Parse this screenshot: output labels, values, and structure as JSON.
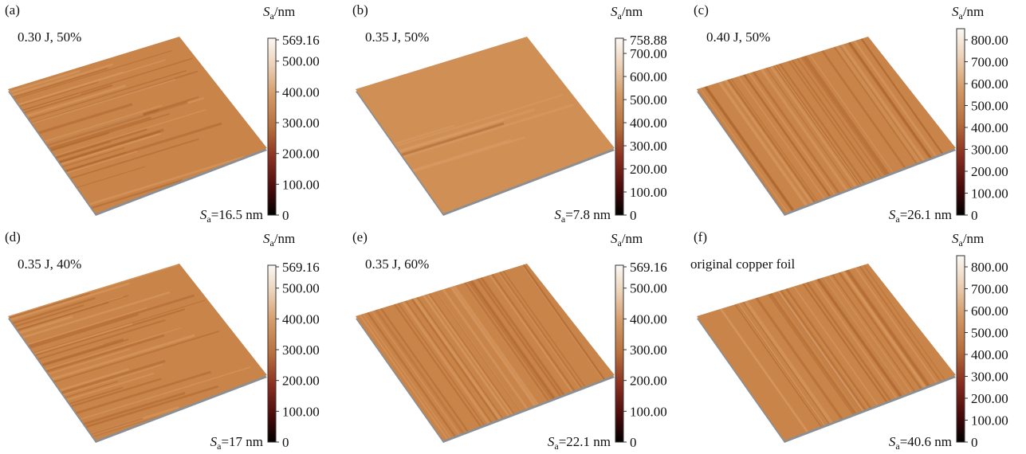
{
  "symbol": "S",
  "subscript": "a",
  "unit": "/nm",
  "panels": [
    {
      "label": "(a)",
      "condition": "0.30 J,   50%",
      "roughness": "=16.5 nm",
      "colorbar_ticks": [
        "569.16",
        "500.00",
        "400.00",
        "300.00",
        "200.00",
        "100.00",
        "0"
      ]
    },
    {
      "label": "(b)",
      "condition": "0.35 J,   50%",
      "roughness": "=7.8 nm",
      "colorbar_ticks": [
        "758.88",
        "700.00",
        "600.00",
        "500.00",
        "400.00",
        "300.00",
        "200.00",
        "100.00",
        "0"
      ]
    },
    {
      "label": "(c)",
      "condition": "0.40 J,   50%",
      "roughness": "=26.1 nm",
      "colorbar_ticks": [
        "800.00",
        "700.00",
        "600.00",
        "500.00",
        "400.00",
        "300.00",
        "200.00",
        "100.00",
        "0"
      ]
    },
    {
      "label": "(d)",
      "condition": "0.35 J,   40%",
      "roughness": "=17 nm",
      "colorbar_ticks": [
        "569.16",
        "500.00",
        "400.00",
        "300.00",
        "200.00",
        "100.00",
        "0"
      ]
    },
    {
      "label": "(e)",
      "condition": "0.35 J,   60%",
      "roughness": "=22.1 nm",
      "colorbar_ticks": [
        "569.16",
        "500.00",
        "400.00",
        "300.00",
        "200.00",
        "100.00",
        "0"
      ]
    },
    {
      "label": "(f)",
      "condition": "original copper foil",
      "roughness": "=40.6 nm",
      "colorbar_ticks": [
        "800.00",
        "700.00",
        "600.00",
        "500.00",
        "400.00",
        "300.00",
        "200.00",
        "100.00",
        "0"
      ]
    }
  ]
}
